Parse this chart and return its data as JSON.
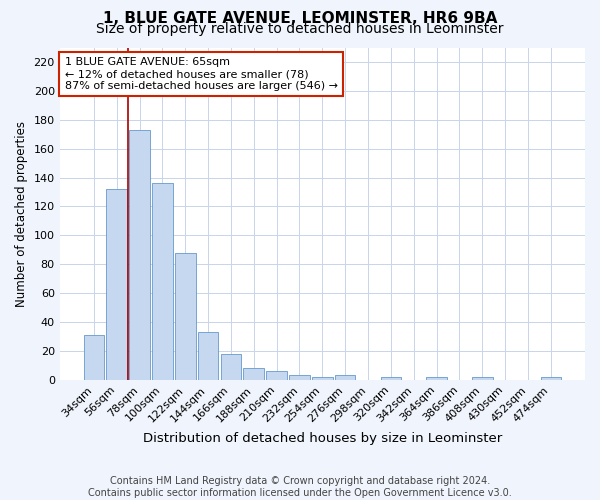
{
  "title1": "1, BLUE GATE AVENUE, LEOMINSTER, HR6 9BA",
  "title2": "Size of property relative to detached houses in Leominster",
  "xlabel": "Distribution of detached houses by size in Leominster",
  "ylabel": "Number of detached properties",
  "categories": [
    "34sqm",
    "56sqm",
    "78sqm",
    "100sqm",
    "122sqm",
    "144sqm",
    "166sqm",
    "188sqm",
    "210sqm",
    "232sqm",
    "254sqm",
    "276sqm",
    "298sqm",
    "320sqm",
    "342sqm",
    "364sqm",
    "386sqm",
    "408sqm",
    "430sqm",
    "452sqm",
    "474sqm"
  ],
  "values": [
    31,
    132,
    173,
    136,
    88,
    33,
    18,
    8,
    6,
    3,
    2,
    3,
    0,
    2,
    0,
    2,
    0,
    2,
    0,
    0,
    2
  ],
  "bar_color": "#c5d8f0",
  "bar_edge_color": "#6699cc",
  "vline_color": "#aa0000",
  "vline_x_idx": 1.5,
  "annotation_text": "1 BLUE GATE AVENUE: 65sqm\n← 12% of detached houses are smaller (78)\n87% of semi-detached houses are larger (546) →",
  "annotation_box_color": "#ffffff",
  "annotation_box_edge_color": "#cc2200",
  "ylim": [
    0,
    230
  ],
  "yticks": [
    0,
    20,
    40,
    60,
    80,
    100,
    120,
    140,
    160,
    180,
    200,
    220
  ],
  "fig_bg_color": "#f0f4fc",
  "plot_bg_color": "#ffffff",
  "grid_color": "#c8d4e8",
  "footer": "Contains HM Land Registry data © Crown copyright and database right 2024.\nContains public sector information licensed under the Open Government Licence v3.0.",
  "title1_fontsize": 11,
  "title2_fontsize": 10,
  "xlabel_fontsize": 9.5,
  "ylabel_fontsize": 8.5,
  "tick_fontsize": 8,
  "annot_fontsize": 8,
  "footer_fontsize": 7
}
